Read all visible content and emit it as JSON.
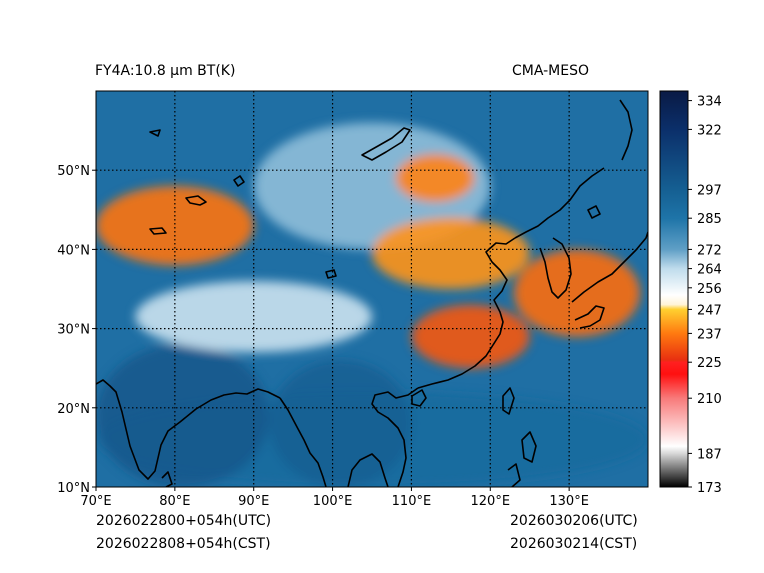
{
  "chart_data": {
    "type": "heatmap",
    "title": "FY4A:10.8 µm BT(K)",
    "subtitle": "CMA-MESO",
    "xlabel": "",
    "ylabel": "",
    "xlim": [
      70,
      140
    ],
    "ylim": [
      10,
      60
    ],
    "grid": true,
    "x_ticks": [
      {
        "value": 70,
        "label": "70°E"
      },
      {
        "value": 80,
        "label": "80°E"
      },
      {
        "value": 90,
        "label": "90°E"
      },
      {
        "value": 100,
        "label": "100°E"
      },
      {
        "value": 110,
        "label": "110°E"
      },
      {
        "value": 120,
        "label": "120°E"
      },
      {
        "value": 130,
        "label": "130°E"
      }
    ],
    "y_ticks": [
      {
        "value": 10,
        "label": "10°N"
      },
      {
        "value": 20,
        "label": "20°N"
      },
      {
        "value": 30,
        "label": "30°N"
      },
      {
        "value": 40,
        "label": "40°N"
      },
      {
        "value": 50,
        "label": "50°N"
      }
    ],
    "colorbar": {
      "min": 173,
      "max": 338,
      "ticks": [
        {
          "value": 334,
          "label": "334"
        },
        {
          "value": 322,
          "label": "322"
        },
        {
          "value": 297,
          "label": "297"
        },
        {
          "value": 285,
          "label": "285"
        },
        {
          "value": 272,
          "label": "272"
        },
        {
          "value": 264,
          "label": "264"
        },
        {
          "value": 256,
          "label": "256"
        },
        {
          "value": 247,
          "label": "247"
        },
        {
          "value": 237,
          "label": "237"
        },
        {
          "value": 225,
          "label": "225"
        },
        {
          "value": 210,
          "label": "210"
        },
        {
          "value": 187,
          "label": "187"
        },
        {
          "value": 173,
          "label": "173"
        }
      ],
      "stops": [
        {
          "value": 173,
          "color": "#000000"
        },
        {
          "value": 187,
          "color": "#d8d8d8"
        },
        {
          "value": 190,
          "color": "#ffffff"
        },
        {
          "value": 210,
          "color": "#f87a7a"
        },
        {
          "value": 220,
          "color": "#ff1010"
        },
        {
          "value": 225,
          "color": "#ff2020"
        },
        {
          "value": 226,
          "color": "#e83010"
        },
        {
          "value": 237,
          "color": "#ff7a10"
        },
        {
          "value": 247,
          "color": "#ffd030"
        },
        {
          "value": 249,
          "color": "#fff4d8"
        },
        {
          "value": 253,
          "color": "#ffffff"
        },
        {
          "value": 264,
          "color": "#bfdcec"
        },
        {
          "value": 272,
          "color": "#5f9fc6"
        },
        {
          "value": 285,
          "color": "#1e74a8"
        },
        {
          "value": 297,
          "color": "#155f92"
        },
        {
          "value": 322,
          "color": "#0b2f6a"
        },
        {
          "value": 338,
          "color": "#0a1a45"
        }
      ]
    },
    "regions": [
      {
        "name": "ocean-south",
        "lon": [
          70,
          140
        ],
        "lat": [
          10,
          22
        ],
        "bt": 290
      },
      {
        "name": "india",
        "lon": [
          70,
          92
        ],
        "lat": [
          10,
          28
        ],
        "bt": 300
      },
      {
        "name": "indochina",
        "lon": [
          92,
          110
        ],
        "lat": [
          10,
          26
        ],
        "bt": 296
      },
      {
        "name": "tibet-plateau",
        "lon": [
          75,
          105
        ],
        "lat": [
          27,
          36
        ],
        "bt": 262
      },
      {
        "name": "mongolia-siberia",
        "lon": [
          90,
          120
        ],
        "lat": [
          40,
          56
        ],
        "bt": 268
      },
      {
        "name": "cold-band-northwest",
        "lon": [
          70,
          90
        ],
        "lat": [
          38,
          48
        ],
        "bt": 236
      },
      {
        "name": "cold-cloud-south-china",
        "lon": [
          110,
          125
        ],
        "lat": [
          25,
          33
        ],
        "bt": 232
      },
      {
        "name": "cold-cloud-korea-japan",
        "lon": [
          123,
          139
        ],
        "lat": [
          29,
          40
        ],
        "bt": 235
      },
      {
        "name": "cold-band-north-china",
        "lon": [
          105,
          125
        ],
        "lat": [
          35,
          44
        ],
        "bt": 240
      },
      {
        "name": "cold-cloud-siberia",
        "lon": [
          108,
          118
        ],
        "lat": [
          46,
          52
        ],
        "bt": 238
      }
    ]
  },
  "footer": {
    "init_utc": "2026022800+054h(UTC)",
    "init_cst": "2026022808+054h(CST)",
    "valid_utc": "2026030206(UTC)",
    "valid_cst": "2026030214(CST)"
  }
}
